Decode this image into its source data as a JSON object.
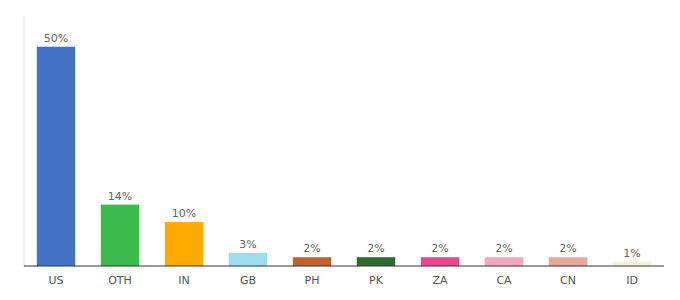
{
  "chart_data": {
    "type": "bar",
    "categories": [
      "US",
      "OTH",
      "IN",
      "GB",
      "PH",
      "PK",
      "ZA",
      "CA",
      "CN",
      "ID"
    ],
    "values": [
      50,
      14,
      10,
      3,
      2,
      2,
      2,
      2,
      2,
      1
    ],
    "value_labels": [
      "50%",
      "14%",
      "10%",
      "3%",
      "2%",
      "2%",
      "2%",
      "2%",
      "2%",
      "1%"
    ],
    "colors": [
      "#4472c4",
      "#3dba4e",
      "#ffaa00",
      "#99ddee",
      "#c0622b",
      "#2d6a2d",
      "#e8498a",
      "#f4a6c0",
      "#e8a898",
      "#f5f0d8"
    ],
    "ylim": [
      0,
      57
    ],
    "grid": false,
    "data_labels": true,
    "tick_labels": "x"
  }
}
